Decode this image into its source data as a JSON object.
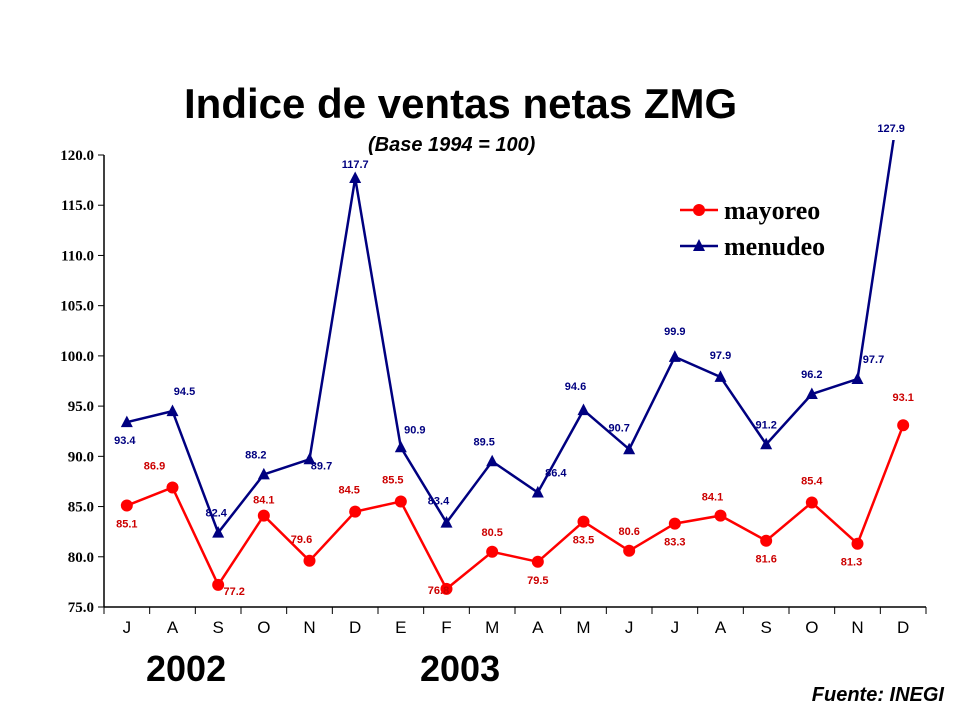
{
  "chart_data": {
    "type": "line",
    "title": "Indice de ventas netas ZMG",
    "subtitle": "(Base 1994 = 100)",
    "categories": [
      "J",
      "A",
      "S",
      "O",
      "N",
      "D",
      "E",
      "F",
      "M",
      "A",
      "M",
      "J",
      "J",
      "A",
      "S",
      "O",
      "N",
      "D"
    ],
    "years": [
      "2002",
      "2003"
    ],
    "ylim": [
      75.0,
      120.0
    ],
    "yticks": [
      "75.0",
      "80.0",
      "85.0",
      "90.0",
      "95.0",
      "100.0",
      "105.0",
      "110.0",
      "115.0",
      "120.0"
    ],
    "legend_position": "top-right",
    "grid": false,
    "series": [
      {
        "name": "mayoreo",
        "color": "#ff0000",
        "label_color": "#cc0000",
        "marker": "circle",
        "values": [
          85.1,
          86.9,
          77.2,
          84.1,
          79.6,
          84.5,
          85.5,
          76.8,
          80.5,
          79.5,
          83.5,
          80.6,
          83.3,
          84.1,
          81.6,
          85.4,
          81.3,
          93.1
        ]
      },
      {
        "name": "menudeo",
        "color": "#000080",
        "label_color": "#000080",
        "marker": "triangle",
        "values": [
          93.4,
          94.5,
          82.4,
          88.2,
          89.7,
          117.7,
          90.9,
          83.4,
          89.5,
          86.4,
          94.6,
          90.7,
          99.9,
          97.9,
          91.2,
          96.2,
          97.7,
          127.9
        ]
      }
    ],
    "source": "Fuente: INEGI"
  }
}
